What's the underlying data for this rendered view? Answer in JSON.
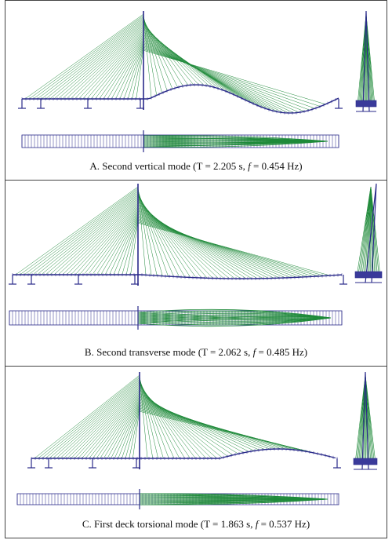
{
  "panels": [
    {
      "key": "A",
      "caption_prefix": "A. Second vertical mode (T = 2.205 s, ",
      "caption_f": "f",
      "caption_suffix": " = 0.454 Hz)"
    },
    {
      "key": "B",
      "caption_prefix": "B. Second transverse mode (T = 2.062 s, ",
      "caption_f": "f",
      "caption_suffix": " = 0.485 Hz)"
    },
    {
      "key": "C",
      "caption_prefix": "C. First deck torsional mode (T = 1.863 s, ",
      "caption_f": "f",
      "caption_suffix": " = 0.537 Hz)"
    }
  ],
  "colors": {
    "cable": "#1f8a3a",
    "deck": "#2a2a8a",
    "border": "#444444"
  }
}
